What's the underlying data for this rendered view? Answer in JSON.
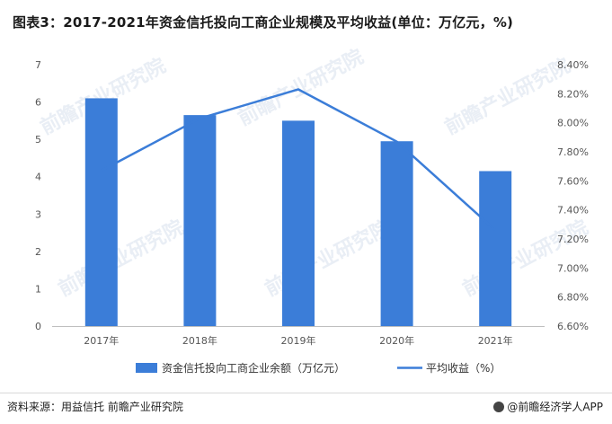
{
  "title": "图表3：2017-2021年资金信托投向工商企业规模及平均收益(单位：万亿元，%)",
  "source": "资料来源：用益信托 前瞻产业研究院",
  "brand": "@前瞻经济学人APP",
  "watermark": "前瞻产业研究院",
  "colors": {
    "bar": "#3b7dd8",
    "line": "#3b7dd8"
  },
  "chart_data": {
    "type": "bar",
    "categories": [
      "2017年",
      "2018年",
      "2019年",
      "2020年",
      "2021年"
    ],
    "series": [
      {
        "name": "资金信托投向工商企业余额（万亿元）",
        "type": "bar",
        "axis": "left",
        "values": [
          6.1,
          5.65,
          5.5,
          4.95,
          4.15
        ]
      },
      {
        "name": "平均收益（%）",
        "type": "line",
        "axis": "right",
        "values": [
          7.67,
          8.03,
          8.23,
          7.87,
          7.26
        ]
      }
    ],
    "ylim": [
      0,
      7
    ],
    "y_ticks": [
      "0",
      "1",
      "2",
      "3",
      "4",
      "5",
      "6",
      "7"
    ],
    "y2lim": [
      6.6,
      8.4
    ],
    "y2_ticks": [
      "6.60%",
      "6.80%",
      "7.00%",
      "7.20%",
      "7.40%",
      "7.60%",
      "7.80%",
      "8.00%",
      "8.20%",
      "8.40%"
    ],
    "grid": false,
    "legend": "bottom"
  }
}
